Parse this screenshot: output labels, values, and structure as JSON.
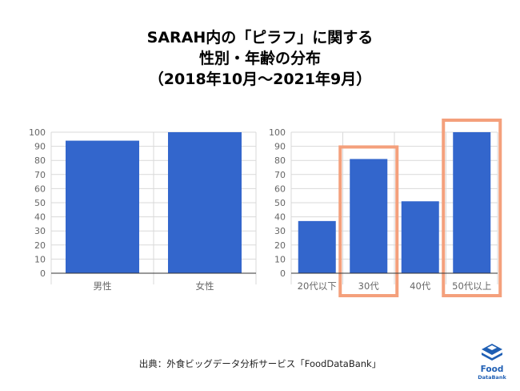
{
  "title": {
    "line1": "SARAH内の「ピラフ」に関する",
    "line2": "性別・年齢の分布",
    "line3": "（2018年10月～2021年9月）"
  },
  "source": "出典：外食ビッグデータ分析サービス「FoodDataBank」",
  "logo": {
    "line1": "Food",
    "line2": "DataBank"
  },
  "colors": {
    "bar": "#3366cc",
    "highlight": "#f4a07c",
    "grid": "#d9d9d9",
    "axis": "#333333",
    "tick": "#666666"
  },
  "chart_data": [
    {
      "type": "bar",
      "categories": [
        "男性",
        "女性"
      ],
      "values": [
        94,
        100
      ],
      "ylim": [
        0,
        100
      ],
      "yticks": [
        0,
        10,
        20,
        30,
        40,
        50,
        60,
        70,
        80,
        90,
        100
      ],
      "grid": true,
      "highlighted": []
    },
    {
      "type": "bar",
      "categories": [
        "20代以下",
        "30代",
        "40代",
        "50代以上"
      ],
      "values": [
        37,
        81,
        51,
        100
      ],
      "ylim": [
        0,
        100
      ],
      "yticks": [
        0,
        10,
        20,
        30,
        40,
        50,
        60,
        70,
        80,
        90,
        100
      ],
      "grid": true,
      "highlighted": [
        "30代",
        "50代以上"
      ]
    }
  ]
}
